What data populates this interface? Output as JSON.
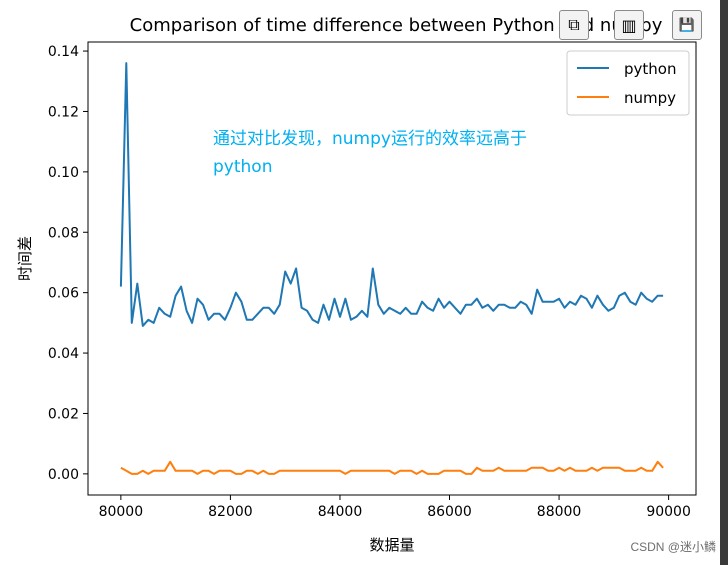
{
  "chart_data": {
    "type": "line",
    "title": "Comparison of time difference between Python and numpy",
    "xlabel": "数据量",
    "ylabel": "时间差",
    "xlim": [
      79400,
      90500
    ],
    "ylim": [
      -0.007,
      0.143
    ],
    "xticks": [
      80000,
      82000,
      84000,
      86000,
      88000,
      90000
    ],
    "yticks": [
      0.0,
      0.02,
      0.04,
      0.06,
      0.08,
      0.1,
      0.12,
      0.14
    ],
    "ytick_labels": [
      "0.00",
      "0.02",
      "0.04",
      "0.06",
      "0.08",
      "0.10",
      "0.12",
      "0.14"
    ],
    "grid": false,
    "legend_position": "upper-right",
    "x": [
      80000,
      80100,
      80200,
      80300,
      80400,
      80500,
      80600,
      80700,
      80800,
      80900,
      81000,
      81100,
      81200,
      81300,
      81400,
      81500,
      81600,
      81700,
      81800,
      81900,
      82000,
      82100,
      82200,
      82300,
      82400,
      82500,
      82600,
      82700,
      82800,
      82900,
      83000,
      83100,
      83200,
      83300,
      83400,
      83500,
      83600,
      83700,
      83800,
      83900,
      84000,
      84100,
      84200,
      84300,
      84400,
      84500,
      84600,
      84700,
      84800,
      84900,
      85000,
      85100,
      85200,
      85300,
      85400,
      85500,
      85600,
      85700,
      85800,
      85900,
      86000,
      86100,
      86200,
      86300,
      86400,
      86500,
      86600,
      86700,
      86800,
      86900,
      87000,
      87100,
      87200,
      87300,
      87400,
      87500,
      87600,
      87700,
      87800,
      87900,
      88000,
      88100,
      88200,
      88300,
      88400,
      88500,
      88600,
      88700,
      88800,
      88900,
      89000,
      89100,
      89200,
      89300,
      89400,
      89500,
      89600,
      89700,
      89800,
      89900
    ],
    "series": [
      {
        "name": "python",
        "color": "#1f77b4",
        "values": [
          0.062,
          0.136,
          0.05,
          0.063,
          0.049,
          0.051,
          0.05,
          0.055,
          0.053,
          0.052,
          0.059,
          0.062,
          0.054,
          0.05,
          0.058,
          0.056,
          0.051,
          0.053,
          0.053,
          0.051,
          0.055,
          0.06,
          0.057,
          0.051,
          0.051,
          0.053,
          0.055,
          0.055,
          0.053,
          0.056,
          0.067,
          0.063,
          0.068,
          0.055,
          0.054,
          0.051,
          0.05,
          0.056,
          0.051,
          0.058,
          0.052,
          0.058,
          0.051,
          0.052,
          0.054,
          0.052,
          0.068,
          0.056,
          0.053,
          0.055,
          0.054,
          0.053,
          0.055,
          0.053,
          0.053,
          0.057,
          0.055,
          0.054,
          0.058,
          0.055,
          0.057,
          0.055,
          0.053,
          0.056,
          0.056,
          0.058,
          0.055,
          0.056,
          0.054,
          0.056,
          0.056,
          0.055,
          0.055,
          0.057,
          0.056,
          0.053,
          0.061,
          0.057,
          0.057,
          0.057,
          0.058,
          0.055,
          0.057,
          0.056,
          0.059,
          0.058,
          0.055,
          0.059,
          0.056,
          0.054,
          0.055,
          0.059,
          0.06,
          0.057,
          0.056,
          0.06,
          0.058,
          0.057,
          0.059,
          0.059
        ]
      },
      {
        "name": "numpy",
        "color": "#ff7f0e",
        "values": [
          0.002,
          0.001,
          0.0,
          0.0,
          0.001,
          0.0,
          0.001,
          0.001,
          0.001,
          0.004,
          0.001,
          0.001,
          0.001,
          0.001,
          0.0,
          0.001,
          0.001,
          0.0,
          0.001,
          0.001,
          0.001,
          0.0,
          0.0,
          0.001,
          0.001,
          0.0,
          0.001,
          0.0,
          0.0,
          0.001,
          0.001,
          0.001,
          0.001,
          0.001,
          0.001,
          0.001,
          0.001,
          0.001,
          0.001,
          0.001,
          0.001,
          0.0,
          0.001,
          0.001,
          0.001,
          0.001,
          0.001,
          0.001,
          0.001,
          0.001,
          0.0,
          0.001,
          0.001,
          0.001,
          0.0,
          0.001,
          0.0,
          0.0,
          0.0,
          0.001,
          0.001,
          0.001,
          0.001,
          0.0,
          0.0,
          0.002,
          0.001,
          0.001,
          0.001,
          0.002,
          0.001,
          0.001,
          0.001,
          0.001,
          0.001,
          0.002,
          0.002,
          0.002,
          0.001,
          0.001,
          0.002,
          0.001,
          0.002,
          0.001,
          0.001,
          0.001,
          0.002,
          0.001,
          0.002,
          0.002,
          0.002,
          0.002,
          0.001,
          0.001,
          0.001,
          0.002,
          0.001,
          0.001,
          0.004,
          0.002
        ]
      }
    ],
    "annotation": [
      "通过对比发现，numpy运行的效率远高于",
      "python"
    ],
    "annotation_color": "#00b0f0"
  },
  "toolbar": [
    {
      "name": "copy-icon",
      "glyph": "⧉"
    },
    {
      "name": "bar-chart-icon",
      "glyph": "▥"
    },
    {
      "name": "save-icon",
      "glyph": "💾"
    }
  ],
  "watermark": "CSDN @迷小鳞"
}
